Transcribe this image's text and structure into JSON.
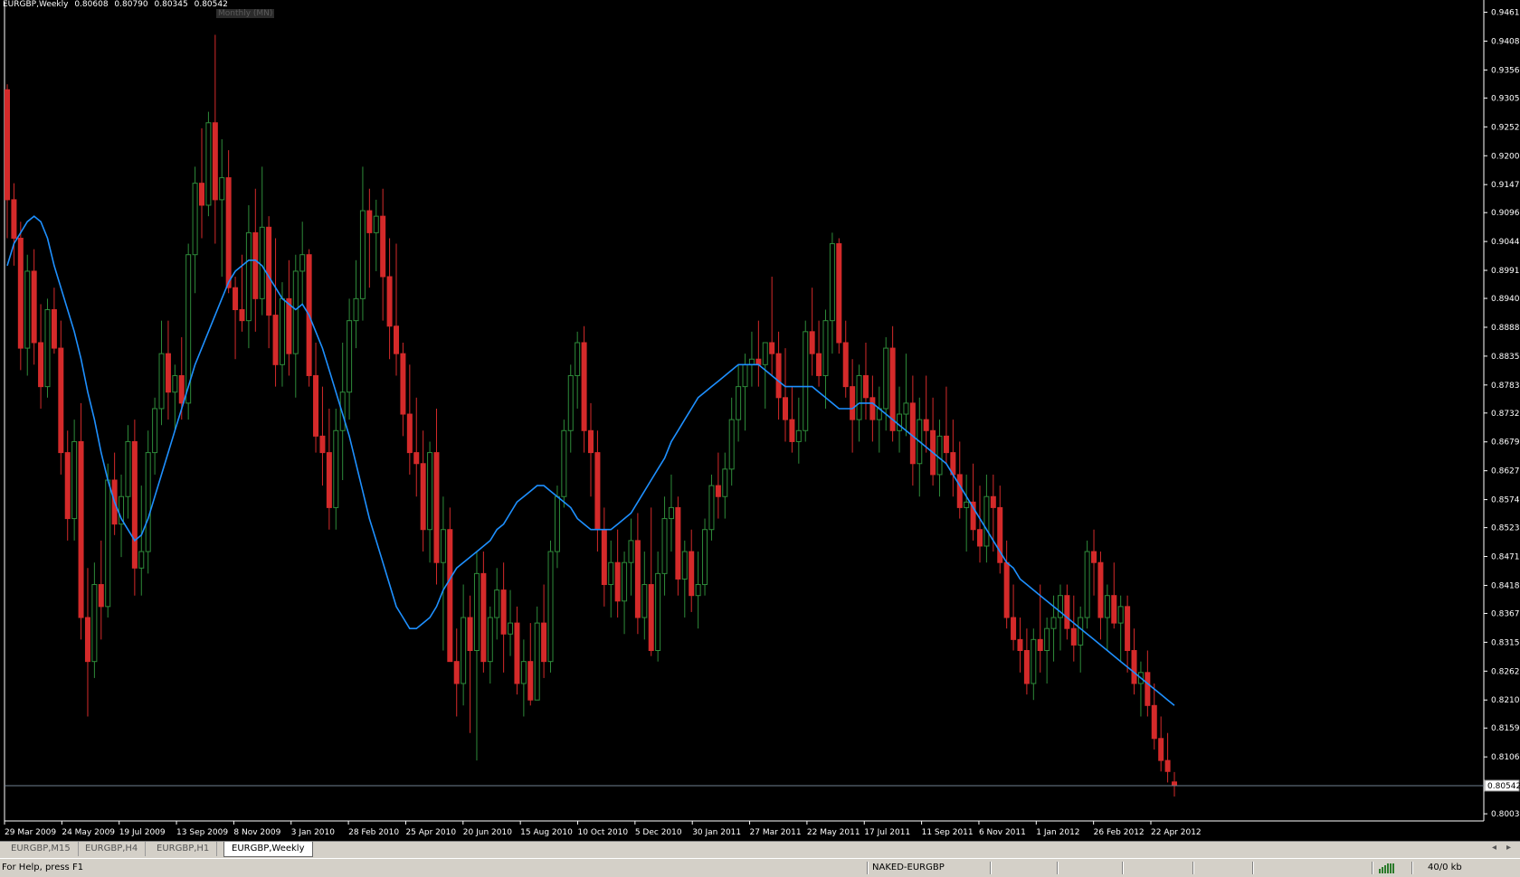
{
  "chart_window": {
    "symbol": "EURGBP,Weekly",
    "ohlc": [
      "0.80608",
      "0.80790",
      "0.80345",
      "0.80542"
    ],
    "period_hint": "Monthly (MN)",
    "current_price": "0.80542"
  },
  "chart_data": {
    "type": "candlestick",
    "price_axis_labels": [
      "0.94610",
      "0.94085",
      "0.93560",
      "0.93050",
      "0.92525",
      "0.92000",
      "0.91475",
      "0.90965",
      "0.90440",
      "0.89915",
      "0.89405",
      "0.88880",
      "0.88355",
      "0.87830",
      "0.87320",
      "0.86795",
      "0.86270",
      "0.85745",
      "0.85235",
      "0.84710",
      "0.84185",
      "0.83675",
      "0.83150",
      "0.82625",
      "0.82100",
      "0.81590",
      "0.81065",
      "0.80030"
    ],
    "ylim": [
      0.799,
      0.948
    ],
    "date_axis_labels": [
      "29 Mar 2009",
      "24 May 2009",
      "19 Jul 2009",
      "13 Sep 2009",
      "8 Nov 2009",
      "3 Jan 2010",
      "28 Feb 2010",
      "25 Apr 2010",
      "20 Jun 2010",
      "15 Aug 2010",
      "10 Oct 2010",
      "5 Dec 2010",
      "30 Jan 2011",
      "27 Mar 2011",
      "22 May 2011",
      "17 Jul 2011",
      "11 Sep 2011",
      "6 Nov 2011",
      "1 Jan 2012",
      "26 Feb 2012",
      "22 Apr 2012"
    ],
    "candles": [
      [
        0.932,
        0.933,
        0.905,
        0.912
      ],
      [
        0.912,
        0.915,
        0.9,
        0.905
      ],
      [
        0.905,
        0.908,
        0.881,
        0.885
      ],
      [
        0.885,
        0.902,
        0.88,
        0.899
      ],
      [
        0.899,
        0.903,
        0.882,
        0.886
      ],
      [
        0.886,
        0.893,
        0.874,
        0.878
      ],
      [
        0.878,
        0.894,
        0.876,
        0.892
      ],
      [
        0.892,
        0.896,
        0.884,
        0.885
      ],
      [
        0.885,
        0.89,
        0.862,
        0.866
      ],
      [
        0.866,
        0.87,
        0.85,
        0.854
      ],
      [
        0.854,
        0.872,
        0.85,
        0.868
      ],
      [
        0.868,
        0.875,
        0.832,
        0.836
      ],
      [
        0.836,
        0.845,
        0.818,
        0.828
      ],
      [
        0.828,
        0.846,
        0.825,
        0.842
      ],
      [
        0.842,
        0.85,
        0.832,
        0.838
      ],
      [
        0.838,
        0.864,
        0.836,
        0.861
      ],
      [
        0.861,
        0.866,
        0.851,
        0.853
      ],
      [
        0.853,
        0.862,
        0.847,
        0.858
      ],
      [
        0.858,
        0.871,
        0.854,
        0.868
      ],
      [
        0.868,
        0.872,
        0.84,
        0.845
      ],
      [
        0.845,
        0.86,
        0.84,
        0.848
      ],
      [
        0.848,
        0.87,
        0.844,
        0.866
      ],
      [
        0.866,
        0.876,
        0.862,
        0.874
      ],
      [
        0.874,
        0.89,
        0.871,
        0.884
      ],
      [
        0.884,
        0.89,
        0.872,
        0.877
      ],
      [
        0.877,
        0.882,
        0.87,
        0.88
      ],
      [
        0.88,
        0.887,
        0.872,
        0.875
      ],
      [
        0.875,
        0.904,
        0.872,
        0.902
      ],
      [
        0.902,
        0.918,
        0.895,
        0.915
      ],
      [
        0.915,
        0.925,
        0.905,
        0.911
      ],
      [
        0.911,
        0.928,
        0.909,
        0.926
      ],
      [
        0.926,
        0.942,
        0.904,
        0.912
      ],
      [
        0.912,
        0.923,
        0.898,
        0.916
      ],
      [
        0.916,
        0.921,
        0.895,
        0.896
      ],
      [
        0.896,
        0.898,
        0.883,
        0.892
      ],
      [
        0.892,
        0.902,
        0.888,
        0.89
      ],
      [
        0.89,
        0.911,
        0.885,
        0.906
      ],
      [
        0.906,
        0.914,
        0.888,
        0.894
      ],
      [
        0.894,
        0.918,
        0.891,
        0.907
      ],
      [
        0.907,
        0.909,
        0.885,
        0.891
      ],
      [
        0.891,
        0.905,
        0.878,
        0.882
      ],
      [
        0.882,
        0.897,
        0.878,
        0.894
      ],
      [
        0.894,
        0.901,
        0.88,
        0.884
      ],
      [
        0.884,
        0.902,
        0.876,
        0.899
      ],
      [
        0.899,
        0.908,
        0.893,
        0.902
      ],
      [
        0.902,
        0.903,
        0.878,
        0.88
      ],
      [
        0.88,
        0.886,
        0.866,
        0.869
      ],
      [
        0.869,
        0.878,
        0.86,
        0.866
      ],
      [
        0.866,
        0.874,
        0.852,
        0.856
      ],
      [
        0.856,
        0.874,
        0.852,
        0.87
      ],
      [
        0.87,
        0.886,
        0.861,
        0.877
      ],
      [
        0.877,
        0.894,
        0.872,
        0.89
      ],
      [
        0.89,
        0.901,
        0.885,
        0.894
      ],
      [
        0.894,
        0.918,
        0.89,
        0.91
      ],
      [
        0.91,
        0.914,
        0.896,
        0.906
      ],
      [
        0.906,
        0.912,
        0.899,
        0.909
      ],
      [
        0.909,
        0.914,
        0.89,
        0.898
      ],
      [
        0.898,
        0.905,
        0.883,
        0.889
      ],
      [
        0.889,
        0.904,
        0.88,
        0.884
      ],
      [
        0.884,
        0.886,
        0.869,
        0.873
      ],
      [
        0.873,
        0.882,
        0.862,
        0.866
      ],
      [
        0.866,
        0.876,
        0.858,
        0.864
      ],
      [
        0.864,
        0.87,
        0.848,
        0.852
      ],
      [
        0.852,
        0.868,
        0.846,
        0.866
      ],
      [
        0.866,
        0.874,
        0.842,
        0.846
      ],
      [
        0.846,
        0.858,
        0.83,
        0.852
      ],
      [
        0.852,
        0.856,
        0.828,
        0.828
      ],
      [
        0.828,
        0.834,
        0.818,
        0.824
      ],
      [
        0.824,
        0.842,
        0.82,
        0.836
      ],
      [
        0.836,
        0.84,
        0.815,
        0.83
      ],
      [
        0.83,
        0.848,
        0.81,
        0.844
      ],
      [
        0.844,
        0.848,
        0.826,
        0.828
      ],
      [
        0.828,
        0.838,
        0.824,
        0.836
      ],
      [
        0.836,
        0.845,
        0.832,
        0.841
      ],
      [
        0.841,
        0.846,
        0.826,
        0.833
      ],
      [
        0.833,
        0.841,
        0.829,
        0.835
      ],
      [
        0.835,
        0.838,
        0.822,
        0.824
      ],
      [
        0.824,
        0.832,
        0.818,
        0.828
      ],
      [
        0.828,
        0.835,
        0.82,
        0.821
      ],
      [
        0.821,
        0.838,
        0.821,
        0.835
      ],
      [
        0.835,
        0.842,
        0.825,
        0.828
      ],
      [
        0.828,
        0.85,
        0.826,
        0.848
      ],
      [
        0.848,
        0.86,
        0.845,
        0.858
      ],
      [
        0.858,
        0.872,
        0.856,
        0.87
      ],
      [
        0.87,
        0.882,
        0.866,
        0.88
      ],
      [
        0.88,
        0.888,
        0.874,
        0.886
      ],
      [
        0.886,
        0.889,
        0.866,
        0.87
      ],
      [
        0.87,
        0.875,
        0.858,
        0.866
      ],
      [
        0.866,
        0.87,
        0.848,
        0.852
      ],
      [
        0.852,
        0.856,
        0.838,
        0.842
      ],
      [
        0.842,
        0.85,
        0.836,
        0.846
      ],
      [
        0.846,
        0.852,
        0.836,
        0.839
      ],
      [
        0.839,
        0.848,
        0.833,
        0.846
      ],
      [
        0.846,
        0.854,
        0.84,
        0.85
      ],
      [
        0.85,
        0.855,
        0.833,
        0.836
      ],
      [
        0.836,
        0.848,
        0.832,
        0.842
      ],
      [
        0.842,
        0.856,
        0.829,
        0.83
      ],
      [
        0.83,
        0.848,
        0.828,
        0.844
      ],
      [
        0.844,
        0.858,
        0.84,
        0.854
      ],
      [
        0.854,
        0.862,
        0.848,
        0.856
      ],
      [
        0.856,
        0.858,
        0.84,
        0.843
      ],
      [
        0.843,
        0.85,
        0.836,
        0.848
      ],
      [
        0.848,
        0.852,
        0.837,
        0.84
      ],
      [
        0.84,
        0.848,
        0.834,
        0.842
      ],
      [
        0.842,
        0.854,
        0.84,
        0.852
      ],
      [
        0.852,
        0.862,
        0.85,
        0.86
      ],
      [
        0.86,
        0.866,
        0.854,
        0.858
      ],
      [
        0.858,
        0.866,
        0.854,
        0.863
      ],
      [
        0.863,
        0.876,
        0.86,
        0.872
      ],
      [
        0.872,
        0.882,
        0.868,
        0.878
      ],
      [
        0.878,
        0.884,
        0.87,
        0.882
      ],
      [
        0.882,
        0.888,
        0.878,
        0.883
      ],
      [
        0.883,
        0.89,
        0.878,
        0.882
      ],
      [
        0.882,
        0.886,
        0.874,
        0.886
      ],
      [
        0.886,
        0.898,
        0.88,
        0.884
      ],
      [
        0.884,
        0.888,
        0.872,
        0.876
      ],
      [
        0.876,
        0.885,
        0.868,
        0.872
      ],
      [
        0.872,
        0.878,
        0.866,
        0.868
      ],
      [
        0.868,
        0.876,
        0.864,
        0.87
      ],
      [
        0.87,
        0.89,
        0.868,
        0.888
      ],
      [
        0.888,
        0.896,
        0.88,
        0.884
      ],
      [
        0.884,
        0.89,
        0.878,
        0.88
      ],
      [
        0.88,
        0.892,
        0.874,
        0.89
      ],
      [
        0.89,
        0.906,
        0.884,
        0.904
      ],
      [
        0.904,
        0.905,
        0.884,
        0.886
      ],
      [
        0.886,
        0.89,
        0.876,
        0.878
      ],
      [
        0.878,
        0.883,
        0.866,
        0.872
      ],
      [
        0.872,
        0.882,
        0.868,
        0.88
      ],
      [
        0.88,
        0.886,
        0.872,
        0.876
      ],
      [
        0.876,
        0.88,
        0.868,
        0.872
      ],
      [
        0.872,
        0.878,
        0.866,
        0.874
      ],
      [
        0.874,
        0.887,
        0.87,
        0.885
      ],
      [
        0.885,
        0.889,
        0.868,
        0.87
      ],
      [
        0.87,
        0.878,
        0.866,
        0.873
      ],
      [
        0.873,
        0.884,
        0.869,
        0.875
      ],
      [
        0.875,
        0.88,
        0.86,
        0.864
      ],
      [
        0.864,
        0.876,
        0.858,
        0.872
      ],
      [
        0.872,
        0.88,
        0.866,
        0.87
      ],
      [
        0.87,
        0.876,
        0.86,
        0.862
      ],
      [
        0.862,
        0.872,
        0.858,
        0.869
      ],
      [
        0.869,
        0.878,
        0.864,
        0.866
      ],
      [
        0.866,
        0.872,
        0.858,
        0.862
      ],
      [
        0.862,
        0.868,
        0.854,
        0.856
      ],
      [
        0.856,
        0.862,
        0.848,
        0.857
      ],
      [
        0.857,
        0.864,
        0.85,
        0.852
      ],
      [
        0.852,
        0.86,
        0.846,
        0.849
      ],
      [
        0.849,
        0.862,
        0.846,
        0.858
      ],
      [
        0.858,
        0.862,
        0.848,
        0.856
      ],
      [
        0.856,
        0.86,
        0.844,
        0.846
      ],
      [
        0.846,
        0.85,
        0.834,
        0.836
      ],
      [
        0.836,
        0.842,
        0.83,
        0.832
      ],
      [
        0.832,
        0.836,
        0.826,
        0.83
      ],
      [
        0.83,
        0.834,
        0.822,
        0.824
      ],
      [
        0.824,
        0.834,
        0.821,
        0.832
      ],
      [
        0.832,
        0.842,
        0.826,
        0.83
      ],
      [
        0.83,
        0.836,
        0.824,
        0.834
      ],
      [
        0.834,
        0.84,
        0.828,
        0.836
      ],
      [
        0.836,
        0.842,
        0.83,
        0.84
      ],
      [
        0.84,
        0.842,
        0.832,
        0.834
      ],
      [
        0.834,
        0.84,
        0.828,
        0.831
      ],
      [
        0.831,
        0.838,
        0.826,
        0.836
      ],
      [
        0.836,
        0.85,
        0.834,
        0.848
      ],
      [
        0.848,
        0.852,
        0.84,
        0.846
      ],
      [
        0.846,
        0.848,
        0.832,
        0.836
      ],
      [
        0.836,
        0.842,
        0.83,
        0.84
      ],
      [
        0.84,
        0.846,
        0.834,
        0.835
      ],
      [
        0.835,
        0.84,
        0.828,
        0.838
      ],
      [
        0.838,
        0.84,
        0.826,
        0.83
      ],
      [
        0.83,
        0.834,
        0.822,
        0.824
      ],
      [
        0.824,
        0.828,
        0.818,
        0.826
      ],
      [
        0.826,
        0.83,
        0.818,
        0.82
      ],
      [
        0.82,
        0.824,
        0.812,
        0.814
      ],
      [
        0.814,
        0.818,
        0.808,
        0.81
      ],
      [
        0.81,
        0.815,
        0.806,
        0.808
      ],
      [
        0.8061,
        0.8079,
        0.80345,
        0.80542
      ]
    ],
    "moving_average": [
      0.9,
      0.904,
      0.906,
      0.908,
      0.909,
      0.908,
      0.905,
      0.9,
      0.896,
      0.892,
      0.888,
      0.883,
      0.877,
      0.872,
      0.866,
      0.861,
      0.857,
      0.854,
      0.852,
      0.85,
      0.851,
      0.854,
      0.858,
      0.862,
      0.866,
      0.87,
      0.874,
      0.878,
      0.882,
      0.885,
      0.888,
      0.891,
      0.894,
      0.897,
      0.899,
      0.9,
      0.901,
      0.901,
      0.9,
      0.898,
      0.896,
      0.894,
      0.893,
      0.892,
      0.893,
      0.891,
      0.888,
      0.885,
      0.881,
      0.877,
      0.873,
      0.869,
      0.864,
      0.859,
      0.854,
      0.85,
      0.846,
      0.842,
      0.838,
      0.836,
      0.834,
      0.834,
      0.835,
      0.836,
      0.838,
      0.841,
      0.843,
      0.845,
      0.846,
      0.847,
      0.848,
      0.849,
      0.85,
      0.852,
      0.853,
      0.855,
      0.857,
      0.858,
      0.859,
      0.86,
      0.86,
      0.859,
      0.858,
      0.857,
      0.856,
      0.854,
      0.853,
      0.852,
      0.852,
      0.852,
      0.852,
      0.853,
      0.854,
      0.855,
      0.857,
      0.859,
      0.861,
      0.863,
      0.865,
      0.868,
      0.87,
      0.872,
      0.874,
      0.876,
      0.877,
      0.878,
      0.879,
      0.88,
      0.881,
      0.882,
      0.882,
      0.882,
      0.882,
      0.881,
      0.88,
      0.879,
      0.878,
      0.878,
      0.878,
      0.878,
      0.878,
      0.877,
      0.876,
      0.875,
      0.874,
      0.874,
      0.874,
      0.875,
      0.875,
      0.875,
      0.874,
      0.873,
      0.872,
      0.871,
      0.87,
      0.869,
      0.868,
      0.867,
      0.866,
      0.865,
      0.864,
      0.862,
      0.86,
      0.858,
      0.856,
      0.854,
      0.852,
      0.85,
      0.848,
      0.846,
      0.845,
      0.843,
      0.842,
      0.841,
      0.84,
      0.839,
      0.838,
      0.837,
      0.836,
      0.835,
      0.834,
      0.833,
      0.832,
      0.831,
      0.83,
      0.829,
      0.828,
      0.827,
      0.826,
      0.825,
      0.824,
      0.823,
      0.822,
      0.821,
      0.82
    ],
    "colors": {
      "bull": "#2e8b3a",
      "bear": "#d42a2a",
      "ma": "#1e90ff",
      "axis": "#ffffff",
      "price_line": "#708090"
    }
  },
  "tabs": [
    "EURGBP,M15",
    "EURGBP,H4",
    "EURGBP,H1",
    "EURGBP,Weekly"
  ],
  "active_tab": "EURGBP,Weekly",
  "status": {
    "help": "For Help, press F1",
    "profile": "NAKED-EURGBP",
    "traffic": "40/0 kb"
  }
}
